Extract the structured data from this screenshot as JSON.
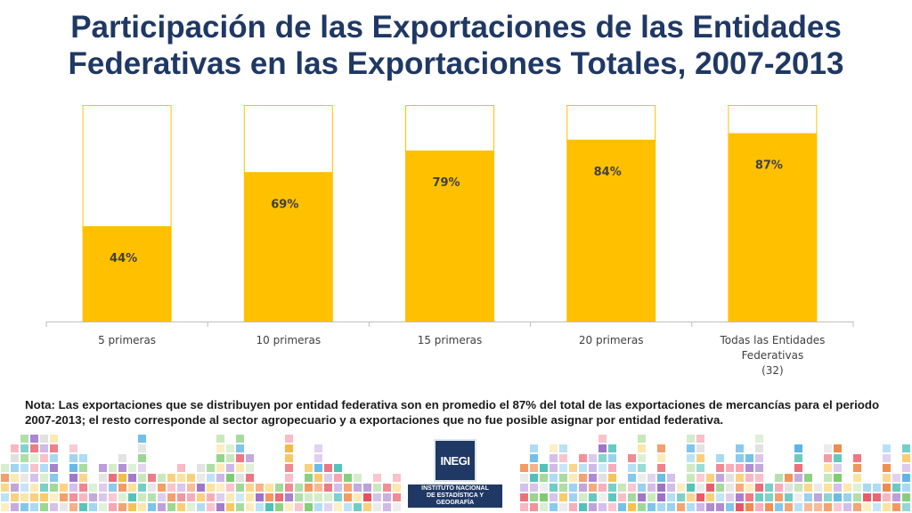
{
  "title": {
    "line1": "Participación de las Exportaciones de las Entidades",
    "line2": "Federativas en las Exportaciones Totales, 2007-2013"
  },
  "chart_data": {
    "type": "bar",
    "stacked_to_100": true,
    "categories": [
      [
        "5 primeras"
      ],
      [
        "10 primeras"
      ],
      [
        "15 primeras"
      ],
      [
        "20 primeras"
      ],
      [
        "Todas las Entidades",
        "Federativas",
        "(32)"
      ]
    ],
    "values": [
      44,
      69,
      79,
      84,
      87
    ],
    "data_labels": [
      "44%",
      "69%",
      "79%",
      "84%",
      "87%"
    ],
    "ylim": [
      0,
      100
    ],
    "grid": false,
    "legend": "none",
    "colors": {
      "bar": "#FFC000",
      "remainder_fill": "#FFFFFF",
      "remainder_border": "#FFC000",
      "axis": "#bfbfbf",
      "label": "#404040"
    }
  },
  "note": "Nota: Las exportaciones que se distribuyen por entidad federativa son en promedio el 87% del total de las exportaciones de mercancías para el periodo 2007-2013; el resto corresponde al sector agropecuario y a exportaciones que no fue posible asignar por entidad federativa.",
  "logo": {
    "mark": "INEGI",
    "sub_line1": "INSTITUTO NACIONAL",
    "sub_line2": "DE ESTADÍSTICA Y GEOGRAFÍA"
  },
  "decoration": {
    "palette": [
      "#e84d5b",
      "#f7a1b0",
      "#5ab4e5",
      "#a5d8f3",
      "#7bc96f",
      "#c6e6b8",
      "#f6b93b",
      "#fbe29a",
      "#9b6fc7",
      "#cdb6e6",
      "#4fc1b6",
      "#f08a4b",
      "#e0e0e0"
    ]
  }
}
